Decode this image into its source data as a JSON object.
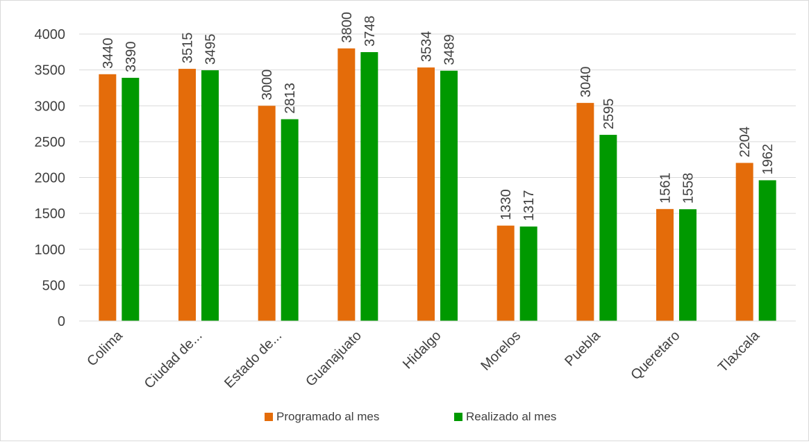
{
  "chart_data": {
    "type": "bar",
    "categories": [
      "Colima",
      "Ciudad de...",
      "Estado de...",
      "Guanajuato",
      "Hidalgo",
      "Morelos",
      "Puebla",
      "Queretaro",
      "Tlaxcala"
    ],
    "series": [
      {
        "name": "Programado al mes",
        "color": "#E46C0A",
        "values": [
          3440,
          3515,
          3000,
          3800,
          3534,
          1330,
          3040,
          1561,
          2204
        ]
      },
      {
        "name": "Realizado al mes",
        "color": "#009900",
        "values": [
          3390,
          3495,
          2813,
          3748,
          3489,
          1317,
          2595,
          1558,
          1962
        ]
      }
    ],
    "ylim": [
      0,
      4000
    ],
    "yticks": [
      "0",
      "500",
      "1000",
      "1500",
      "2000",
      "2500",
      "3000",
      "3500",
      "4000"
    ],
    "grid": true,
    "legend_position": "bottom",
    "data_labels": "vertical"
  }
}
